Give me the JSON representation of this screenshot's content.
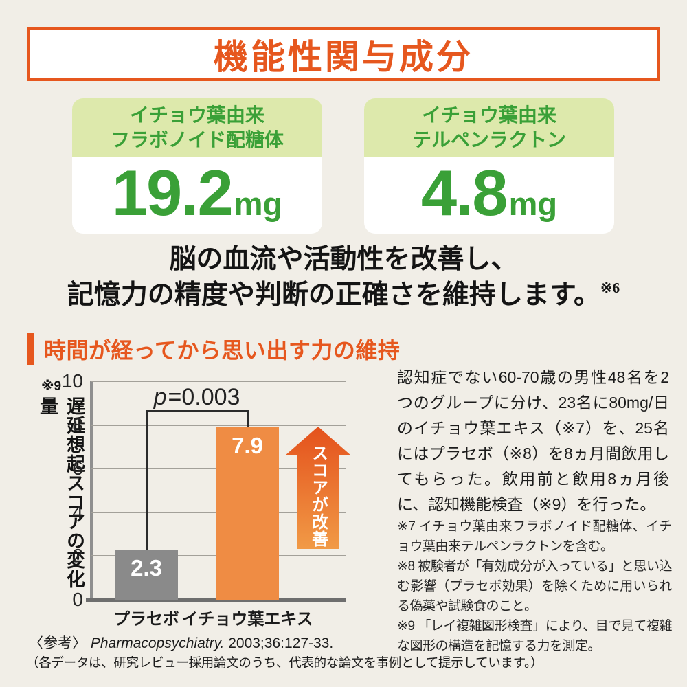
{
  "header": {
    "title": "機能性関与成分"
  },
  "ingredient_cards": [
    {
      "name_line1": "イチョウ葉由来",
      "name_line2": "フラボノイド配糖体",
      "amount": "19.2",
      "unit": "mg"
    },
    {
      "name_line1": "イチョウ葉由来",
      "name_line2": "テルペンラクトン",
      "amount": "4.8",
      "unit": "mg"
    }
  ],
  "statement": {
    "line1": "脳の血流や活動性を改善し、",
    "line2": "記憶力の精度や判断の正確さを維持します。",
    "note_ref": "※6"
  },
  "section": {
    "heading": "時間が経ってから思い出す力の維持"
  },
  "chart_data": {
    "type": "bar",
    "title": "時間が経ってから思い出す力の維持",
    "categories": [
      "プラセボ",
      "イチョウ葉エキス"
    ],
    "values": [
      2.3,
      7.9
    ],
    "value_labels": [
      "2.3",
      "7.9"
    ],
    "bar_colors": [
      "#8a8a8a",
      "#ef8c44"
    ],
    "ylabel": "遅延想起スコアの変化量",
    "ylabel_note": "※9",
    "ylim": [
      0,
      10
    ],
    "yticks": [
      0,
      2,
      4,
      6,
      8,
      10
    ],
    "grid": true,
    "legend": "none",
    "significance": {
      "symbol": "p",
      "rest": "=0.003"
    },
    "annotation_arrow_label": "スコアが改善"
  },
  "study_text": "認知症でない60-70歳の男性48名を2つのグループに分け、23名に80mg/日のイチョウ葉エキス（※7）を、25名にはプラセボ（※8）を8ヵ月間飲用してもらった。飲用前と飲用8ヵ月後に、認知機能検査（※9）を行った。",
  "footnotes": [
    "※7 イチョウ葉由来フラボノイド配糖体、イチョウ葉由来テルペンラクトンを含む。",
    "※8 被験者が「有効成分が入っている」と思い込む影響（プラセボ効果）を除くために用いられる偽薬や試験食のこと。",
    "※9 「レイ複雑図形検査」により、目で見て複雑な図形の構造を記憶する力を測定。"
  ],
  "reference": {
    "prefix": "〈参考〉",
    "journal": "Pharmacopsychiatry.",
    "citation": " 2003;36:127-33."
  },
  "disclaimer": "（各データは、研究レビュー採用論文のうち、代表的な論文を事例として提示しています。）",
  "colors": {
    "page_bg": "#f1eee7",
    "accent_orange": "#e6571e",
    "green_text": "#3aa037",
    "green_header_bg": "#dde9ac",
    "bar_gray": "#8a8a8a",
    "bar_orange": "#ef8c44",
    "arrow_gradient_top": "#e4511c",
    "arrow_gradient_bottom": "#f19a46"
  }
}
